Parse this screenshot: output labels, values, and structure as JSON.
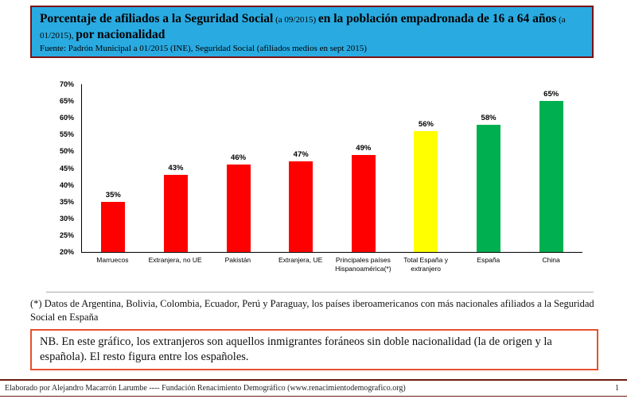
{
  "header": {
    "title_part1": "Porcentaje de afiliados a la Seguridad Social",
    "title_part2": " (a 09/2015) ",
    "title_part3": "en la población empadronada de 16 a 64 años",
    "title_part4": " (a 01/2015), ",
    "title_part5": "por nacionalidad",
    "subtitle": "Fuente: Padrón Municipal a 01/2015 (INE), Seguridad Social (afiliados medios en sept 2015)"
  },
  "chart_data": {
    "type": "bar",
    "categories": [
      "Marruecos",
      "Extranjera, no UE",
      "Pakistán",
      "Extranjera, UE",
      "Principales países Hispanoamérica(*)",
      "Total España y extranjero",
      "España",
      "China"
    ],
    "values": [
      35,
      43,
      46,
      47,
      49,
      56,
      58,
      65
    ],
    "value_labels": [
      "35%",
      "43%",
      "46%",
      "47%",
      "49%",
      "56%",
      "58%",
      "65%"
    ],
    "bar_colors": [
      "#FF0000",
      "#FF0000",
      "#FF0000",
      "#FF0000",
      "#FF0000",
      "#FFFF00",
      "#00B050",
      "#00B050"
    ],
    "title": "Porcentaje de afiliados a la Seguridad Social (a 09/2015) en la población empadronada de 16 a 64 años (a 01/2015), por nacionalidad",
    "xlabel": "",
    "ylabel": "",
    "ylim": [
      20,
      70
    ],
    "yticks": [
      "20%",
      "25%",
      "30%",
      "35%",
      "40%",
      "45%",
      "50%",
      "55%",
      "60%",
      "65%",
      "70%"
    ],
    "grid": false,
    "legend": false
  },
  "footnote": "(*) Datos de Argentina, Bolivia, Colombia, Ecuador, Perú y Paraguay, los países iberoamericanos con más nacionales afiliados a la Seguridad Social en España",
  "nb_note": "NB. En este gráfico, los extranjeros son aquellos inmigrantes foráneos sin doble nacionalidad (la de origen y la española). El resto figura entre los españoles.",
  "footer": {
    "left": "Elaborado por Alejandro Macarrón Larumbe  ----  Fundación Renacimiento Demográfico (www.renacimientodemografico.org)",
    "page": "1"
  }
}
